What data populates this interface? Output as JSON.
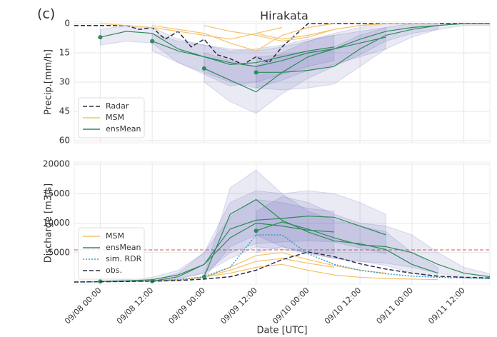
{
  "label": "(c)",
  "title": "Hirakata",
  "x_label": "Date [UTC]",
  "chart_data": [
    {
      "type": "line",
      "y_label": "Precip.[mm/h]",
      "ylim": [
        0,
        60
      ],
      "invert_y": true,
      "yticks": [
        0,
        15,
        30,
        45,
        60
      ],
      "xlim": [
        "09/07 18:00",
        "09/11 18:00"
      ],
      "xticks": [
        "09/08 00:00",
        "09/08 12:00",
        "09/09 00:00",
        "09/09 12:00",
        "09/10 00:00",
        "09/10 12:00",
        "09/11 00:00",
        "09/11 12:00"
      ],
      "show_xtick_labels": false,
      "grid": true,
      "legend": "lower left",
      "band_color": "#5a60b0",
      "series": [
        {
          "name": "Radar",
          "color": "#2b2f45",
          "style": "dashed",
          "x": [
            "09/07 18:00",
            "09/08 00:00",
            "09/08 06:00",
            "09/08 09:00",
            "09/08 12:00",
            "09/08 15:00",
            "09/08 18:00",
            "09/08 21:00",
            "09/09 00:00",
            "09/09 03:00",
            "09/09 06:00",
            "09/09 09:00",
            "09/09 12:00",
            "09/09 15:00",
            "09/09 18:00",
            "09/09 21:00",
            "09/10 00:00",
            "09/10 12:00",
            "09/11 00:00",
            "09/11 18:00"
          ],
          "values": [
            1,
            1,
            1,
            3,
            2,
            8,
            4,
            12,
            8,
            16,
            18,
            21,
            17,
            20,
            12,
            6,
            0,
            0,
            0,
            0
          ]
        },
        {
          "name": "MSM",
          "color": "#f5c26b",
          "style": "solid",
          "runs": [
            {
              "x": [
                "09/08 00:00",
                "09/08 06:00",
                "09/08 12:00",
                "09/08 18:00",
                "09/09 00:00",
                "09/09 06:00",
                "09/09 12:00",
                "09/09 18:00"
              ],
              "values": [
                0,
                1,
                2,
                4,
                6,
                8,
                5,
                2
              ]
            },
            {
              "x": [
                "09/08 12:00",
                "09/08 18:00",
                "09/09 00:00",
                "09/09 06:00",
                "09/09 12:00",
                "09/09 18:00",
                "09/10 00:00",
                "09/10 06:00"
              ],
              "values": [
                1,
                3,
                5,
                10,
                14,
                6,
                2,
                0
              ]
            },
            {
              "x": [
                "09/09 00:00",
                "09/09 06:00",
                "09/09 12:00",
                "09/09 18:00",
                "09/10 00:00",
                "09/10 06:00",
                "09/10 12:00",
                "09/10 18:00"
              ],
              "values": [
                1,
                4,
                6,
                9,
                7,
                3,
                1,
                0
              ]
            },
            {
              "x": [
                "09/09 12:00",
                "09/09 18:00",
                "09/10 00:00",
                "09/10 06:00",
                "09/10 12:00",
                "09/10 18:00",
                "09/11 00:00",
                "09/11 06:00"
              ],
              "values": [
                5,
                8,
                6,
                3,
                1,
                0,
                0,
                0
              ]
            }
          ]
        },
        {
          "name": "ensMean",
          "color": "#2e8b57",
          "style": "solid",
          "runs": [
            {
              "x": [
                "09/08 00:00",
                "09/08 06:00",
                "09/08 12:00",
                "09/08 18:00",
                "09/09 00:00",
                "09/09 06:00",
                "09/09 12:00",
                "09/09 18:00",
                "09/10 00:00",
                "09/10 06:00"
              ],
              "values": [
                7,
                4,
                5,
                13,
                17,
                21,
                20,
                17,
                14,
                12
              ],
              "lower": [
                3,
                1,
                2,
                8,
                11,
                14,
                13,
                11,
                8,
                6
              ],
              "upper": [
                11,
                9,
                10,
                20,
                26,
                32,
                30,
                26,
                22,
                19
              ]
            },
            {
              "x": [
                "09/08 12:00",
                "09/08 18:00",
                "09/09 00:00",
                "09/09 06:00",
                "09/09 12:00",
                "09/09 18:00",
                "09/10 00:00",
                "09/10 06:00",
                "09/10 12:00",
                "09/10 18:00"
              ],
              "values": [
                9,
                14,
                17,
                20,
                22,
                19,
                15,
                13,
                10,
                7
              ],
              "lower": [
                5,
                9,
                11,
                13,
                14,
                12,
                9,
                6,
                4,
                2
              ],
              "upper": [
                14,
                20,
                25,
                30,
                33,
                29,
                24,
                21,
                17,
                13
              ]
            },
            {
              "x": [
                "09/09 00:00",
                "09/09 06:00",
                "09/09 12:00",
                "09/09 18:00",
                "09/10 00:00",
                "09/10 06:00",
                "09/10 12:00",
                "09/10 18:00",
                "09/11 00:00",
                "09/11 06:00"
              ],
              "values": [
                23,
                29,
                35,
                25,
                17,
                13,
                8,
                4,
                2,
                1
              ],
              "lower": [
                15,
                19,
                22,
                15,
                9,
                5,
                2,
                0,
                0,
                0
              ],
              "upper": [
                30,
                40,
                46,
                36,
                28,
                22,
                16,
                9,
                5,
                3
              ]
            },
            {
              "x": [
                "09/09 12:00",
                "09/09 18:00",
                "09/10 00:00",
                "09/10 06:00",
                "09/10 12:00",
                "09/10 18:00",
                "09/11 00:00",
                "09/11 06:00",
                "09/11 12:00",
                "09/11 18:00"
              ],
              "values": [
                25,
                25,
                24,
                22,
                13,
                6,
                3,
                1,
                0,
                0
              ],
              "lower": [
                17,
                16,
                14,
                12,
                6,
                2,
                0,
                0,
                0,
                0
              ],
              "upper": [
                33,
                34,
                33,
                31,
                22,
                13,
                7,
                3,
                1,
                1
              ]
            }
          ]
        }
      ]
    },
    {
      "type": "line",
      "y_label": "Discharge [m3/s]",
      "ylim": [
        0,
        20000
      ],
      "invert_y": false,
      "yticks": [
        5000,
        10000,
        15000,
        20000
      ],
      "xlim": [
        "09/07 18:00",
        "09/11 18:00"
      ],
      "xticks": [
        "09/08 00:00",
        "09/08 12:00",
        "09/09 00:00",
        "09/09 12:00",
        "09/10 00:00",
        "09/10 12:00",
        "09/11 00:00",
        "09/11 12:00"
      ],
      "show_xtick_labels": true,
      "grid": true,
      "legend": "lower left",
      "band_color": "#5a60b0",
      "threshold": 5450,
      "threshold_color": "#d9534f",
      "series": [
        {
          "name": "MSM",
          "color": "#f5c26b",
          "style": "solid",
          "runs": [
            {
              "x": [
                "09/08 00:00",
                "09/08 06:00",
                "09/08 12:00",
                "09/08 18:00",
                "09/09 00:00",
                "09/09 06:00",
                "09/09 12:00",
                "09/09 18:00",
                "09/10 00:00",
                "09/10 06:00"
              ],
              "values": [
                50,
                100,
                200,
                400,
                900,
                2000,
                3500,
                4000,
                3200,
                2500
              ]
            },
            {
              "x": [
                "09/08 12:00",
                "09/08 18:00",
                "09/09 00:00",
                "09/09 06:00",
                "09/09 12:00",
                "09/09 18:00",
                "09/10 00:00",
                "09/10 06:00",
                "09/10 12:00",
                "09/10 18:00"
              ],
              "values": [
                100,
                300,
                800,
                2500,
                4500,
                5000,
                3800,
                2800,
                2000,
                1500
              ]
            },
            {
              "x": [
                "09/09 00:00",
                "09/09 06:00",
                "09/09 12:00",
                "09/09 18:00",
                "09/10 00:00",
                "09/10 06:00",
                "09/10 12:00",
                "09/10 18:00",
                "09/11 00:00",
                "09/11 06:00"
              ],
              "values": [
                900,
                1500,
                2500,
                3000,
                2000,
                1200,
                800,
                600,
                500,
                400
              ]
            }
          ]
        },
        {
          "name": "ensMean",
          "color": "#2e8b57",
          "style": "solid",
          "runs": [
            {
              "x": [
                "09/08 00:00",
                "09/08 06:00",
                "09/08 12:00",
                "09/08 18:00",
                "09/09 00:00",
                "09/09 06:00",
                "09/09 12:00",
                "09/09 18:00",
                "09/10 00:00",
                "09/10 06:00"
              ],
              "values": [
                100,
                200,
                400,
                1200,
                3000,
                7500,
                10000,
                9500,
                8800,
                8500
              ],
              "lower": [
                50,
                100,
                200,
                600,
                1500,
                4000,
                6000,
                5500,
                5000,
                4800
              ],
              "upper": [
                200,
                400,
                800,
                2000,
                5000,
                11000,
                14000,
                13500,
                12500,
                12000
              ]
            },
            {
              "x": [
                "09/08 12:00",
                "09/08 18:00",
                "09/09 00:00",
                "09/09 06:00",
                "09/09 12:00",
                "09/09 18:00",
                "09/10 00:00",
                "09/10 06:00",
                "09/10 12:00",
                "09/10 18:00"
              ],
              "values": [
                150,
                900,
                3000,
                9000,
                10500,
                10800,
                11200,
                11000,
                9500,
                8000
              ],
              "lower": [
                100,
                500,
                1500,
                5000,
                6500,
                6800,
                7000,
                6800,
                5800,
                4800
              ],
              "upper": [
                300,
                1500,
                5000,
                13500,
                15500,
                15000,
                15500,
                15000,
                13500,
                11500
              ]
            },
            {
              "x": [
                "09/09 00:00",
                "09/09 06:00",
                "09/09 12:00",
                "09/09 18:00",
                "09/10 00:00",
                "09/10 06:00",
                "09/10 12:00",
                "09/10 18:00",
                "09/11 00:00",
                "09/11 06:00"
              ],
              "values": [
                900,
                11500,
                14000,
                10500,
                8500,
                7000,
                6500,
                5500,
                3000,
                1500
              ],
              "lower": [
                700,
                6000,
                8000,
                6000,
                4800,
                4000,
                3500,
                2800,
                1500,
                800
              ],
              "upper": [
                1200,
                16000,
                19000,
                15000,
                12000,
                10500,
                9500,
                8500,
                5000,
                2500
              ]
            },
            {
              "x": [
                "09/09 12:00",
                "09/09 18:00",
                "09/10 00:00",
                "09/10 06:00",
                "09/10 12:00",
                "09/10 18:00",
                "09/11 00:00",
                "09/11 06:00",
                "09/11 12:00",
                "09/11 18:00"
              ],
              "values": [
                8700,
                10200,
                9000,
                7500,
                6300,
                6000,
                5000,
                3000,
                1500,
                900
              ],
              "lower": [
                5000,
                6000,
                5000,
                4000,
                3500,
                3200,
                2500,
                1500,
                800,
                500
              ],
              "upper": [
                12000,
                14500,
                13500,
                11500,
                10000,
                9500,
                8000,
                5000,
                2500,
                1400
              ]
            }
          ]
        },
        {
          "name": "sim. RDR",
          "color": "#3b9ad1",
          "style": "dotted",
          "x": [
            "09/07 18:00",
            "09/08 00:00",
            "09/08 06:00",
            "09/08 12:00",
            "09/08 18:00",
            "09/09 00:00",
            "09/09 06:00",
            "09/09 12:00",
            "09/09 18:00",
            "09/10 00:00",
            "09/10 06:00",
            "09/10 12:00",
            "09/10 18:00",
            "09/11 00:00",
            "09/11 06:00",
            "09/11 12:00",
            "09/11 18:00"
          ],
          "values": [
            0,
            50,
            100,
            200,
            400,
            900,
            2500,
            8000,
            8000,
            4800,
            3000,
            2000,
            1400,
            1000,
            800,
            700,
            600
          ]
        },
        {
          "name": "obs.",
          "color": "#2b2f45",
          "style": "dashed",
          "x": [
            "09/07 18:00",
            "09/08 00:00",
            "09/08 06:00",
            "09/08 12:00",
            "09/08 18:00",
            "09/09 00:00",
            "09/09 06:00",
            "09/09 12:00",
            "09/09 18:00",
            "09/10 00:00",
            "09/10 06:00",
            "09/10 12:00",
            "09/10 18:00",
            "09/11 00:00",
            "09/11 06:00",
            "09/11 12:00",
            "09/11 18:00"
          ],
          "values": [
            0,
            50,
            100,
            150,
            250,
            500,
            900,
            2000,
            3800,
            5100,
            4300,
            3100,
            2200,
            1500,
            1000,
            800,
            700
          ]
        }
      ]
    }
  ]
}
